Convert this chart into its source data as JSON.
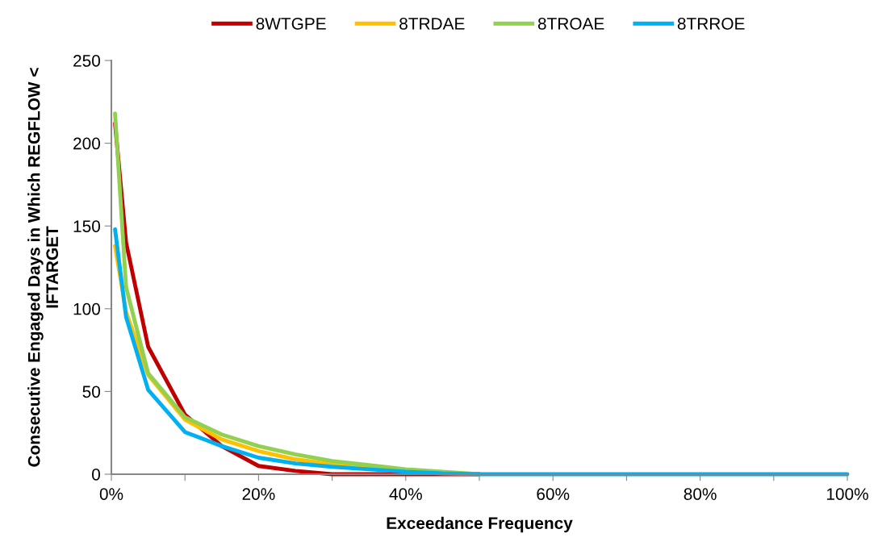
{
  "chart_data": {
    "type": "line",
    "xlabel": "Exceedance Frequency",
    "ylabel": "Consecutive Engaged Days in Which REGFLOW <\nIFTARGET",
    "x": [
      0.5,
      2,
      5,
      10,
      15,
      20,
      25,
      30,
      35,
      40,
      45,
      50,
      60,
      70,
      80,
      90,
      100
    ],
    "series": [
      {
        "name": "8WTGPE",
        "color": "#c00000",
        "values": [
          212,
          140,
          77,
          36,
          17,
          5,
          2,
          0,
          0,
          0,
          0,
          0,
          null,
          null,
          null,
          null,
          null
        ]
      },
      {
        "name": "8TRDAE",
        "color": "#ffc000",
        "values": [
          138,
          98,
          60,
          33,
          21,
          14,
          9,
          6,
          4,
          2,
          null,
          null,
          null,
          null,
          null,
          null,
          null
        ]
      },
      {
        "name": "8TROAE",
        "color": "#92d050",
        "values": [
          218,
          113,
          61,
          34.5,
          24,
          17,
          12,
          8,
          5.5,
          3,
          1.5,
          0,
          null,
          null,
          null,
          null,
          null
        ]
      },
      {
        "name": "8TRROE",
        "color": "#00b0f0",
        "values": [
          148,
          95,
          51,
          25.5,
          17,
          10,
          6.5,
          4.5,
          3,
          1.5,
          0.5,
          0,
          0,
          0,
          0,
          0,
          0
        ]
      }
    ],
    "xlim": [
      0,
      100
    ],
    "xticks": [
      {
        "value": 0,
        "label": "0%"
      },
      {
        "value": 10,
        "label": null
      },
      {
        "value": 20,
        "label": "20%"
      },
      {
        "value": 30,
        "label": null
      },
      {
        "value": 40,
        "label": "40%"
      },
      {
        "value": 50,
        "label": null
      },
      {
        "value": 60,
        "label": "60%"
      },
      {
        "value": 70,
        "label": null
      },
      {
        "value": 80,
        "label": "80%"
      },
      {
        "value": 90,
        "label": null
      },
      {
        "value": 100,
        "label": "100%"
      }
    ],
    "ylim": [
      0,
      250
    ],
    "yticks": [
      0,
      50,
      100,
      150,
      200,
      250
    ],
    "grid": false,
    "legend": "top",
    "marker": "none",
    "line_style": "solid"
  }
}
